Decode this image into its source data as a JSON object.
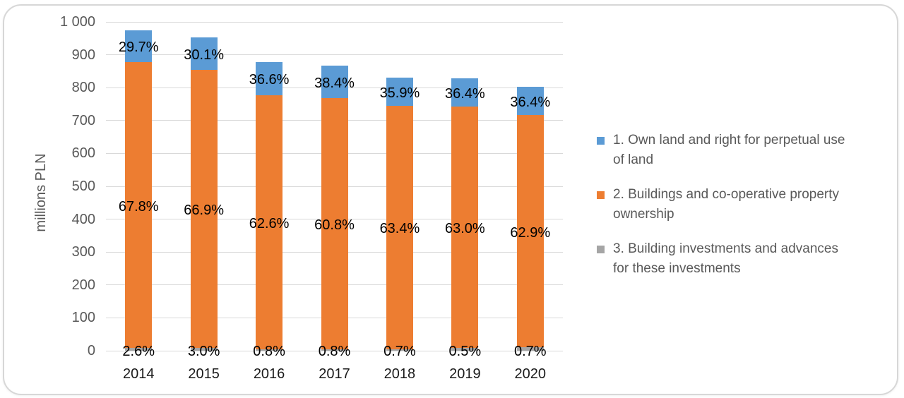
{
  "frame": {
    "border_color": "#d7d7d7",
    "background": "#ffffff"
  },
  "chart_data": {
    "type": "bar",
    "stacked": true,
    "title": "",
    "xlabel": "",
    "ylabel": "millions PLN",
    "ylim": [
      0,
      1000
    ],
    "ytick_step": 100,
    "ytick_labels": [
      "0",
      "100",
      "200",
      "300",
      "400",
      "500",
      "600",
      "700",
      "800",
      "900",
      "1 000"
    ],
    "grid": true,
    "gridline_color": "#d9d9d9",
    "axis_text_color": "#595959",
    "data_label_color": "#000000",
    "legend_position": "right",
    "categories": [
      "2014",
      "2015",
      "2016",
      "2017",
      "2018",
      "2019",
      "2020"
    ],
    "series": [
      {
        "name": "1. Own land and right for perpetual use of land",
        "legend_lines": [
          "1. Own land and right for perpetual use",
          "of land"
        ],
        "color": "#5b9bd5",
        "stack_position": "top",
        "values": [
          96,
          99,
          101,
          99,
          85,
          85,
          85
        ],
        "labels": [
          "29.7%",
          "30.1%",
          "36.6%",
          "38.4%",
          "35.9%",
          "36.4%",
          "36.4%"
        ]
      },
      {
        "name": "2. Buildings and co-operative property ownership",
        "legend_lines": [
          "2. Buildings and co-operative property",
          "ownership"
        ],
        "color": "#ed7d31",
        "stack_position": "middle",
        "values": [
          870,
          846,
          773,
          764,
          741,
          735,
          707
        ],
        "labels": [
          "67.8%",
          "66.9%",
          "62.6%",
          "60.8%",
          "63.4%",
          "63.0%",
          "62.9%"
        ]
      },
      {
        "name": "3. Building investments and advances for these investments",
        "legend_lines": [
          "3. Building investments and advances",
          "for these investments"
        ],
        "color": "#a5a5a5",
        "stack_position": "bottom",
        "values": [
          8,
          8,
          4,
          4,
          4,
          8,
          10
        ],
        "labels": [
          "2.6%",
          "3.0%",
          "0.8%",
          "0.8%",
          "0.7%",
          "0.5%",
          "0.7%"
        ]
      }
    ]
  }
}
